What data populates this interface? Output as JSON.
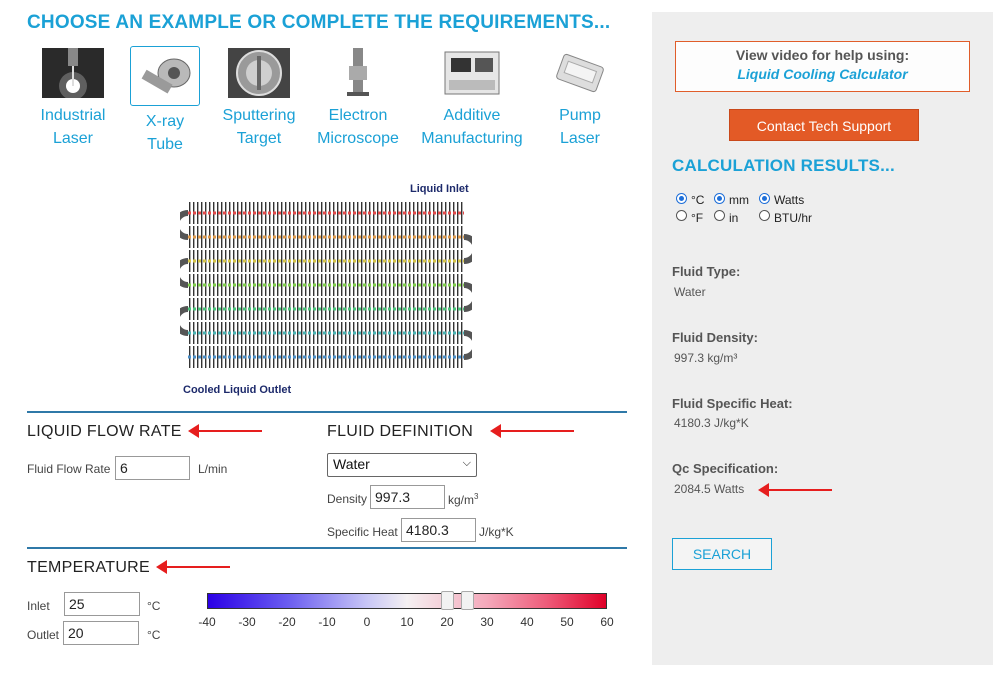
{
  "header": {
    "title": "CHOOSE AN EXAMPLE OR COMPLETE THE REQUIREMENTS..."
  },
  "examples": [
    {
      "label": "Industrial\nLaser",
      "icon": "industrial-laser-image"
    },
    {
      "label": "X-ray\nTube",
      "icon": "x-ray-tube-image",
      "selected": true
    },
    {
      "label": "Sputtering\nTarget",
      "icon": "sputtering-target-image"
    },
    {
      "label": "Electron\nMicroscope",
      "icon": "electron-microscope-image"
    },
    {
      "label": "Additive\nManufacturing",
      "icon": "additive-manufacturing-image"
    },
    {
      "label": "Pump\nLaser",
      "icon": "pump-laser-image"
    }
  ],
  "diagram": {
    "inlet_label": "Liquid Inlet",
    "outlet_label": "Cooled Liquid Outlet"
  },
  "flow": {
    "title": "LIQUID FLOW RATE",
    "field_label": "Fluid Flow Rate",
    "value": "6",
    "unit": "L/min"
  },
  "fluid": {
    "title": "FLUID DEFINITION",
    "selected": "Water",
    "density_label": "Density",
    "density_value": "997.3",
    "density_unit": "kg/m",
    "density_unit_sup": "3",
    "specific_heat_label": "Specific Heat",
    "specific_heat_value": "4180.3",
    "specific_heat_unit": "J/kg*K"
  },
  "temperature": {
    "title": "TEMPERATURE",
    "inlet_label": "Inlet",
    "inlet_value": "25",
    "inlet_unit": "°C",
    "outlet_label": "Outlet",
    "outlet_value": "20",
    "outlet_unit": "°C",
    "scale_ticks": [
      "-40",
      "-30",
      "-20",
      "-10",
      "0",
      "10",
      "20",
      "30",
      "40",
      "50",
      "60"
    ],
    "scale_min": -40,
    "scale_max": 60,
    "slider_low": 20,
    "slider_high": 25
  },
  "sidebar": {
    "video_line1": "View video for help using:",
    "video_line2": "Liquid Cooling Calculator",
    "contact_button": "Contact Tech Support",
    "results_title": "CALCULATION RESULTS...",
    "units": {
      "temp_c": "°C",
      "temp_f": "°F",
      "len_mm": "mm",
      "len_in": "in",
      "pow_w": "Watts",
      "pow_btu": "BTU/hr"
    },
    "fluid_type_label": "Fluid Type:",
    "fluid_type_value": "Water",
    "density_label": "Fluid Density:",
    "density_value": "997.3 kg/m³",
    "specific_heat_label": "Fluid Specific Heat:",
    "specific_heat_value": "4180.3 J/kg*K",
    "qc_label": "Qc Specification:",
    "qc_value": "2084.5 Watts",
    "search_button": "SEARCH"
  },
  "colors": {
    "accent": "#1ba1d6",
    "contact": "#e35a26",
    "arrow": "#e61e1e",
    "rule": "#2f79a8"
  }
}
